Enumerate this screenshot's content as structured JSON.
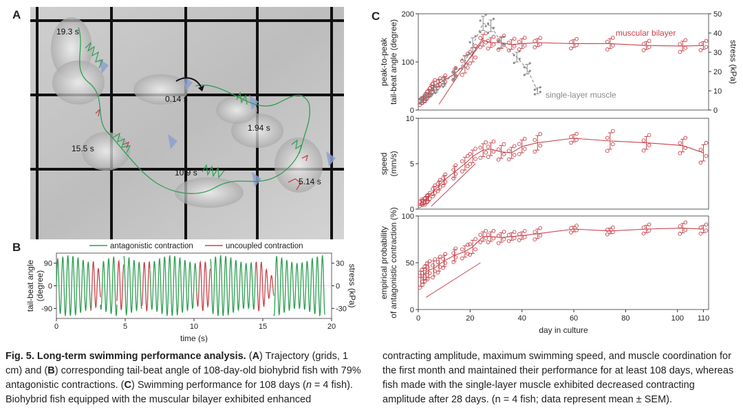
{
  "panel_a": {
    "letter": "A",
    "timestamps": [
      "19.3 s",
      "0.14 s",
      "1.94 s",
      "15.5 s",
      "10.9 s",
      "5.14 s"
    ]
  },
  "panel_b": {
    "letter": "B",
    "legend": {
      "green": "antagonistic contraction",
      "red": "uncoupled contraction"
    }
  },
  "panel_c": {
    "letter": "C"
  },
  "colors": {
    "green": "#2e9e52",
    "red": "#c8434a",
    "gray": "#8a8a8a",
    "grid": "#111111"
  },
  "chart_data": [
    {
      "id": "B",
      "type": "line",
      "xlabel": "time (s)",
      "ylabel": "tail-beat angle (degree)",
      "y2label": "stress (kPa)",
      "xlim": [
        0,
        20
      ],
      "ylim": [
        -130,
        130
      ],
      "xticks": [
        "0",
        "5",
        "10",
        "15",
        "20"
      ],
      "yticks": [
        "90",
        "0",
        "-90"
      ],
      "y2ticks": [
        "30",
        "0",
        "-30"
      ],
      "series": [
        {
          "name": "antagonistic contraction",
          "color": "green",
          "segments": [
            [
              0,
              2.5
            ],
            [
              3.2,
              4.4
            ],
            [
              4.9,
              6.2
            ],
            [
              6.8,
              10.2
            ],
            [
              11.2,
              14.5
            ],
            [
              15.8,
              19.5
            ]
          ]
        },
        {
          "name": "uncoupled contraction",
          "color": "red",
          "segments": [
            [
              2.5,
              3.2
            ],
            [
              4.4,
              4.9
            ],
            [
              6.2,
              6.8
            ],
            [
              10.2,
              11.2
            ],
            [
              14.5,
              15.8
            ]
          ]
        }
      ],
      "wave_period_s": 0.37
    },
    {
      "id": "C-top",
      "type": "line",
      "ylabel_lines": [
        "peak-to-peak",
        "tail-beat angle (degree)"
      ],
      "y2label": "stress (kPa)",
      "xlim": [
        0,
        112
      ],
      "ylim": [
        0,
        200
      ],
      "y2lim": [
        0,
        50
      ],
      "yticks": [
        "0",
        "100",
        "200"
      ],
      "y2ticks": [
        "0",
        "10",
        "20",
        "30",
        "40",
        "50"
      ],
      "annotations": [
        "muscular bilayer",
        "single-layer muscle"
      ],
      "series": [
        {
          "name": "muscular bilayer",
          "color": "red",
          "x": [
            1,
            2,
            3,
            4,
            5,
            6,
            8,
            10,
            14,
            18,
            21,
            25,
            28,
            32,
            36,
            40,
            46,
            60,
            74,
            88,
            102,
            110
          ],
          "y": [
            18,
            22,
            28,
            35,
            42,
            50,
            56,
            62,
            75,
            95,
            115,
            145,
            140,
            140,
            136,
            138,
            140,
            138,
            138,
            134,
            133,
            134
          ],
          "err": [
            6,
            6,
            8,
            8,
            10,
            10,
            8,
            8,
            10,
            18,
            15,
            12,
            10,
            12,
            10,
            10,
            8,
            8,
            10,
            8,
            10,
            8
          ]
        },
        {
          "name": "single-layer muscle",
          "color": "gray",
          "x": [
            1,
            3,
            5,
            7,
            10,
            14,
            18,
            21,
            25,
            28,
            32,
            38,
            42,
            46
          ],
          "y": [
            20,
            28,
            36,
            45,
            58,
            75,
            100,
            135,
            180,
            175,
            140,
            110,
            85,
            40
          ],
          "err": [
            5,
            6,
            6,
            8,
            8,
            10,
            12,
            15,
            15,
            12,
            10,
            10,
            10,
            6
          ]
        }
      ],
      "fit_line": {
        "x": [
          8,
          25
        ],
        "y": [
          12,
          150
        ]
      }
    },
    {
      "id": "C-mid",
      "type": "line",
      "ylabel_lines": [
        "speed",
        "(mm/s)"
      ],
      "xlim": [
        0,
        112
      ],
      "ylim": [
        0,
        10
      ],
      "yticks": [
        "0",
        "5",
        "10"
      ],
      "series": [
        {
          "name": "muscular bilayer",
          "color": "red",
          "x": [
            1,
            2,
            3,
            4,
            6,
            8,
            10,
            14,
            18,
            21,
            25,
            28,
            32,
            36,
            40,
            46,
            60,
            74,
            88,
            102,
            110
          ],
          "y": [
            0.7,
            0.8,
            1.0,
            1.3,
            2.0,
            2.6,
            3.2,
            4.1,
            5.0,
            5.8,
            6.5,
            6.6,
            6.3,
            6.2,
            6.9,
            7.3,
            7.8,
            7.5,
            7.3,
            7.0,
            6.2
          ],
          "err": [
            0.3,
            0.3,
            0.4,
            0.4,
            0.5,
            0.5,
            0.5,
            0.6,
            0.7,
            0.7,
            0.7,
            0.7,
            0.7,
            0.6,
            0.7,
            0.8,
            0.4,
            0.9,
            0.7,
            0.7,
            0.9
          ]
        }
      ],
      "fit_line": {
        "x": [
          5,
          22
        ],
        "y": [
          0.3,
          5.0
        ]
      }
    },
    {
      "id": "C-bottom",
      "type": "line",
      "ylabel_lines": [
        "empirical probability",
        "of antagonistic contraction (%)"
      ],
      "xlabel": "day in culture",
      "xlim": [
        0,
        112
      ],
      "ylim": [
        0,
        100
      ],
      "yticks": [
        "0",
        "50",
        "100"
      ],
      "xticks": [
        "0",
        "20",
        "40",
        "60",
        "80",
        "100",
        "110"
      ],
      "series": [
        {
          "name": "muscular bilayer",
          "color": "red",
          "x": [
            1,
            2,
            3,
            4,
            6,
            8,
            10,
            14,
            18,
            21,
            25,
            28,
            32,
            36,
            40,
            46,
            60,
            74,
            88,
            102,
            110
          ],
          "y": [
            33,
            36,
            40,
            42,
            44,
            48,
            52,
            58,
            62,
            67,
            78,
            78,
            77,
            78,
            79,
            81,
            86,
            84,
            86,
            87,
            86
          ],
          "err": [
            8,
            8,
            8,
            8,
            8,
            7,
            6,
            6,
            6,
            7,
            5,
            5,
            5,
            4,
            4,
            5,
            3,
            3,
            4,
            5,
            4
          ]
        }
      ],
      "fit_line": {
        "x": [
          3,
          24
        ],
        "y": [
          13,
          50
        ]
      }
    }
  ],
  "caption": {
    "fig_label": "Fig. 5. Long-term swimming performance analysis.",
    "text_left": [
      {
        "t": " (",
        "b": false
      },
      {
        "t": "A",
        "b": true
      },
      {
        "t": ") Trajectory (grids, 1 cm) and (",
        "b": false
      },
      {
        "t": "B",
        "b": true
      },
      {
        "t": ") corresponding tail-beat angle of 108-day-old biohybrid fish with 79% antagonistic contractions. (",
        "b": false
      },
      {
        "t": "C",
        "b": true
      },
      {
        "t": ") Swimming performance for 108 days (",
        "b": false
      },
      {
        "t": "n",
        "i": true
      },
      {
        "t": " = 4 fish). Biohybrid fish equipped with the muscular bilayer exhibited enhanced",
        "b": false
      }
    ],
    "text_right": "contracting amplitude, maximum swimming speed, and muscle coordination for the first month and maintained their performance for at least 108 days, whereas fish made with the single-layer muscle exhibited decreased contracting amplitude after 28 days. (n = 4 fish; data represent mean ± SEM)."
  }
}
